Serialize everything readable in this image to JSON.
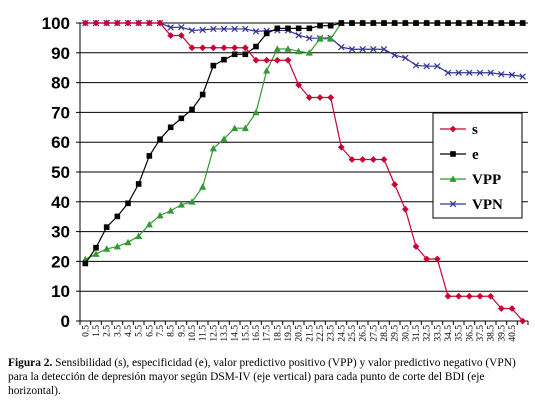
{
  "caption": {
    "label": "Figura 2.",
    "text": "Sensibilidad (s), especificidad (e), valor predictivo positivo (VPP) y valor predictivo negativo (VPN) para la detección de depresión mayor según DSM-IV (eje vertical) para cada punto de corte del BDI (eje horizontal)."
  },
  "chart_data": {
    "type": "line",
    "title": "",
    "xlabel": "",
    "ylabel": "",
    "ylim": [
      0,
      100
    ],
    "yticks": [
      0,
      10,
      20,
      30,
      40,
      50,
      60,
      70,
      80,
      90,
      100
    ],
    "grid": "horizontal",
    "legend": "right",
    "x": [
      0.5,
      1.5,
      2.5,
      3.5,
      4.5,
      5.5,
      6.5,
      7.5,
      8.5,
      9.5,
      10.5,
      11.5,
      12.5,
      13.5,
      14.5,
      15.5,
      16.5,
      17.5,
      18.5,
      19.5,
      20.5,
      21.5,
      22.5,
      23.5,
      24.5,
      25.5,
      26.5,
      27.5,
      28.5,
      29.5,
      30.5,
      31.5,
      32.5,
      33.5,
      34.5,
      35.5,
      36.5,
      37.5,
      38.5,
      39.5,
      40.5,
      41.5
    ],
    "xtick_labels": [
      "0.5",
      "1.5",
      "2.5",
      "3.5",
      "4.5",
      "5.5",
      "6.5",
      "7.5",
      "8.5",
      "9.5",
      "10.5",
      "11.5",
      "12.5",
      "13.5",
      "14.5",
      "15.5",
      "16.5",
      "17.5",
      "18.5",
      "19.5",
      "20.5",
      "21.5",
      "22.5",
      "23.5",
      "24.5",
      "25.5",
      "26.5",
      "27.5",
      "28.5",
      "29.5",
      "30.5",
      "31.5",
      "32.5",
      "33.5",
      "34.5",
      "35.5",
      "36.5",
      "37.5",
      "38.5",
      "39.5",
      "40.5"
    ],
    "series": [
      {
        "name": "s",
        "color": "#cc0033",
        "marker": "diamond",
        "values": [
          100,
          100,
          100,
          100,
          100,
          100,
          100,
          100,
          95.8,
          95.8,
          91.7,
          91.7,
          91.7,
          91.7,
          91.7,
          91.7,
          87.5,
          87.5,
          87.5,
          87.5,
          79.2,
          75,
          75,
          75,
          58.3,
          54.2,
          54.2,
          54.2,
          54.2,
          45.8,
          37.5,
          25,
          20.8,
          20.8,
          8.3,
          8.3,
          8.3,
          8.3,
          8.3,
          4.2,
          4.2,
          0
        ]
      },
      {
        "name": "e",
        "color": "#000000",
        "marker": "square",
        "values": [
          19.3,
          24.6,
          31.5,
          35.1,
          39.5,
          46,
          55.4,
          61,
          65,
          68,
          71,
          76,
          85.7,
          87.7,
          89.5,
          89.5,
          92.1,
          96.5,
          98.2,
          98.2,
          98.2,
          98.2,
          99.1,
          99.1,
          100,
          100,
          100,
          100,
          100,
          100,
          100,
          100,
          100,
          100,
          100,
          100,
          100,
          100,
          100,
          100,
          100,
          100
        ]
      },
      {
        "name": "VPP",
        "color": "#339933",
        "marker": "triangle",
        "values": [
          20.7,
          22.5,
          24.2,
          25,
          26.4,
          28.5,
          32.4,
          35.4,
          37,
          39,
          40,
          45,
          57.9,
          61.1,
          64.7,
          64.7,
          70,
          84,
          91.3,
          91.3,
          90.5,
          90,
          94.7,
          94.7,
          100,
          100,
          100,
          100,
          100,
          100,
          100,
          100,
          100,
          100,
          100,
          100,
          100,
          100,
          100,
          100,
          100,
          100
        ]
      },
      {
        "name": "VPN",
        "color": "#333399",
        "marker": "x",
        "values": [
          100,
          100,
          100,
          100,
          100,
          100,
          100,
          100,
          98.5,
          98.6,
          97.5,
          97.7,
          98,
          98,
          98,
          98,
          97.2,
          97.4,
          97.5,
          97.5,
          95.9,
          94.9,
          94.9,
          95,
          91.9,
          91.2,
          91.2,
          91.2,
          91.2,
          89.2,
          88.3,
          85.8,
          85.5,
          85.5,
          83.3,
          83.3,
          83.3,
          83.3,
          83.3,
          82.8,
          82.6,
          82
        ]
      }
    ]
  }
}
